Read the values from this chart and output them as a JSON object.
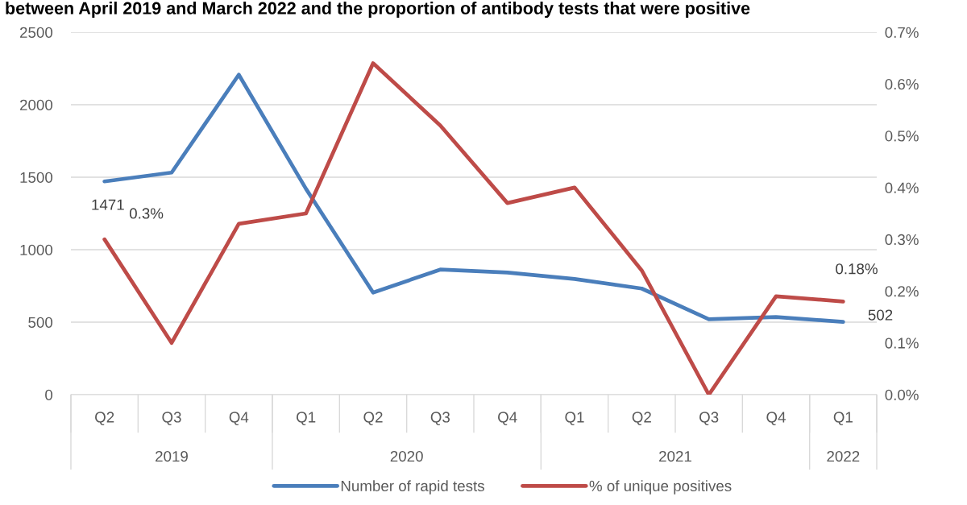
{
  "chart_data": {
    "type": "line",
    "title": "between April 2019 and March 2022 and the proportion of antibody tests that were positive",
    "categories": [
      "Q2",
      "Q3",
      "Q4",
      "Q1",
      "Q2",
      "Q3",
      "Q4",
      "Q1",
      "Q2",
      "Q3",
      "Q4",
      "Q1"
    ],
    "annotations": [
      "2019",
      "2020",
      "2021",
      "2022"
    ],
    "series": [
      {
        "name": "Number of rapid tests",
        "color": "#4a7ebb",
        "values": [
          1471,
          1532,
          2207,
          1420,
          704,
          863,
          842,
          798,
          732,
          520,
          535,
          502
        ],
        "value_labels": [
          "1471",
          null,
          null,
          null,
          null,
          null,
          null,
          null,
          null,
          null,
          null,
          "502"
        ]
      },
      {
        "name": "% of unique positives",
        "color": "#be4b48",
        "axis": "y2",
        "values": [
          0.3,
          0.1,
          0.33,
          0.35,
          0.64,
          0.52,
          0.37,
          0.4,
          0.24,
          0,
          0.19,
          0.18
        ],
        "value_labels": [
          "0.3%",
          null,
          null,
          null,
          null,
          null,
          null,
          null,
          null,
          null,
          null,
          "0.18%"
        ]
      }
    ],
    "ylim": [
      0,
      2500
    ],
    "yticks": [
      0,
      500,
      1000,
      1500,
      2000,
      2500
    ],
    "y2lim": [
      0,
      0.7
    ],
    "y2ticks": [
      {
        "value": 0,
        "label": "0.0%"
      },
      {
        "value": 0.1,
        "label": "0.1%"
      },
      {
        "value": 0.2,
        "label": "0.2%"
      },
      {
        "value": 0.3,
        "label": "0.3%"
      },
      {
        "value": 0.4,
        "label": "0.4%"
      },
      {
        "value": 0.5,
        "label": "0.5%"
      },
      {
        "value": 0.6,
        "label": "0.6%"
      },
      {
        "value": 0.7,
        "label": "0.7%"
      }
    ],
    "grid": "y",
    "legend": "bottom",
    "marker": "none",
    "line_style": "solid"
  }
}
